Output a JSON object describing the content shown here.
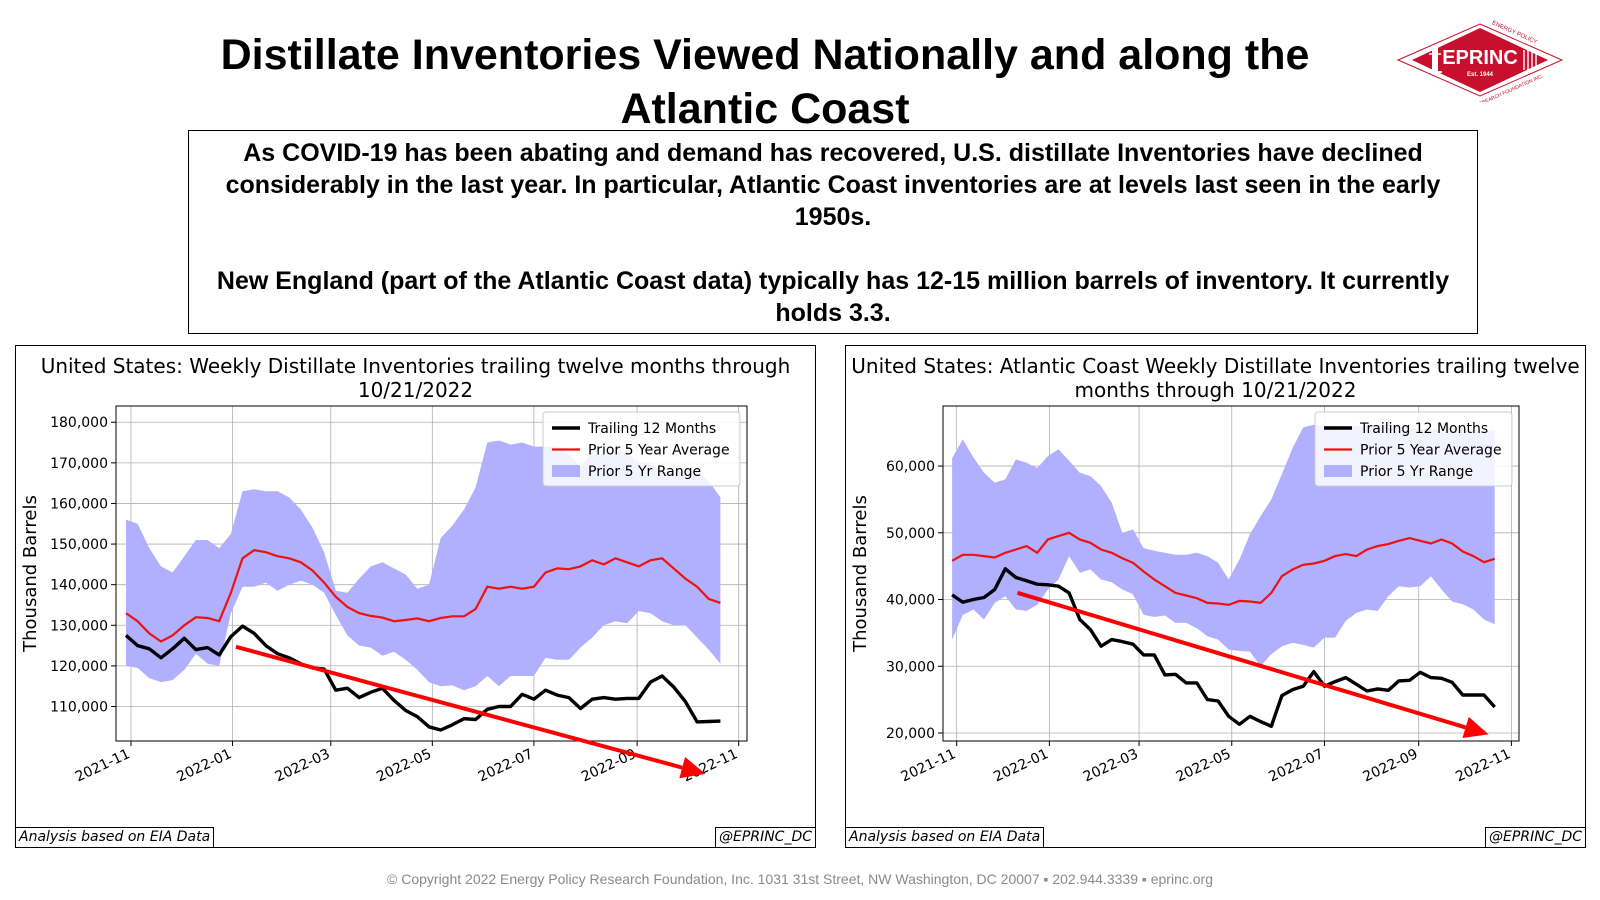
{
  "slide": {
    "title": "Distillate Inventories Viewed Nationally and along the Atlantic Coast",
    "summary_p1": "As COVID-19 has been abating and demand has recovered, U.S. distillate Inventories have declined considerably in the last year. In particular, Atlantic Coast inventories are at levels last seen in the early 1950s.",
    "summary_p2": "New England (part of the Atlantic Coast data) typically has 12-15 million barrels of inventory. It currently holds 3.3.",
    "footer": "© Copyright 2022 Energy Policy Research Foundation, Inc. 1031 31st Street, NW Washington, DC 20007 ▪ 202.944.3339 ▪ eprinc.org"
  },
  "logo": {
    "text": "EPRINC",
    "est": "Est. 1944",
    "ring_top": "ENERGY POLICY",
    "ring_bottom": "RESEARCH FOUNDATION INC.",
    "color": "#c8102e"
  },
  "colors": {
    "trailing": "#000000",
    "average": "#ee1111",
    "range": "#b0b0ff",
    "trend_arrow": "#ff0000"
  },
  "chart_data": [
    {
      "type": "line",
      "title": "United States: Weekly Distillate Inventories trailing twelve months through 10/21/2022",
      "ylabel": "Thousand Barrels",
      "xlabel": "",
      "xlim": [
        "2021-10-23",
        "2022-11-06"
      ],
      "ylim": [
        101500,
        184000
      ],
      "yticks": [
        110000,
        120000,
        130000,
        140000,
        150000,
        160000,
        170000,
        180000
      ],
      "ytick_labels": [
        "110,000",
        "120,000",
        "130,000",
        "140,000",
        "150,000",
        "160,000",
        "170,000",
        "180,000"
      ],
      "xticks": [
        "2021-11-01",
        "2022-01-01",
        "2022-03-01",
        "2022-05-01",
        "2022-07-01",
        "2022-09-01",
        "2022-11-01"
      ],
      "xtick_labels": [
        "2021-11",
        "2022-01",
        "2022-03",
        "2022-05",
        "2022-07",
        "2022-09",
        "2022-11"
      ],
      "grid": true,
      "legend_position": "upper right",
      "legend": [
        "Trailing 12 Months",
        "Prior 5 Year Average",
        "Prior 5 Yr Range"
      ],
      "dates": [
        "2021-10-29",
        "2021-11-05",
        "2021-11-12",
        "2021-11-19",
        "2021-11-26",
        "2021-12-03",
        "2021-12-10",
        "2021-12-17",
        "2021-12-24",
        "2021-12-31",
        "2022-01-07",
        "2022-01-14",
        "2022-01-21",
        "2022-01-28",
        "2022-02-04",
        "2022-02-11",
        "2022-02-18",
        "2022-02-25",
        "2022-03-04",
        "2022-03-11",
        "2022-03-18",
        "2022-03-25",
        "2022-04-01",
        "2022-04-08",
        "2022-04-15",
        "2022-04-22",
        "2022-04-29",
        "2022-05-06",
        "2022-05-13",
        "2022-05-20",
        "2022-05-27",
        "2022-06-03",
        "2022-06-10",
        "2022-06-17",
        "2022-06-24",
        "2022-07-01",
        "2022-07-08",
        "2022-07-15",
        "2022-07-22",
        "2022-07-29",
        "2022-08-05",
        "2022-08-12",
        "2022-08-19",
        "2022-08-26",
        "2022-09-02",
        "2022-09-09",
        "2022-09-16",
        "2022-09-23",
        "2022-09-30",
        "2022-10-07",
        "2022-10-14",
        "2022-10-21"
      ],
      "series": [
        {
          "name": "Trailing 12 Months",
          "values": [
            127500,
            125000,
            124200,
            122000,
            124200,
            126800,
            124000,
            124500,
            122700,
            127200,
            129800,
            128000,
            125000,
            123000,
            122000,
            120500,
            119500,
            119200,
            114000,
            114500,
            112200,
            113500,
            114500,
            111500,
            109000,
            107500,
            105000,
            104200,
            105500,
            107000,
            106800,
            109300,
            110000,
            110000,
            113000,
            111800,
            114000,
            112800,
            112200,
            109500,
            111800,
            112200,
            111800,
            112000,
            112000,
            116000,
            117500,
            114800,
            111200,
            106200,
            106300,
            106400
          ]
        },
        {
          "name": "Prior 5 Year Average",
          "values": [
            133000,
            131000,
            128000,
            126000,
            127500,
            130000,
            132000,
            131800,
            131000,
            138000,
            146500,
            148500,
            148000,
            147000,
            146500,
            145500,
            143500,
            140500,
            137000,
            134500,
            133000,
            132300,
            131900,
            131000,
            131300,
            131700,
            131000,
            131800,
            132200,
            132200,
            134000,
            139500,
            139000,
            139500,
            139000,
            139500,
            143000,
            144000,
            143800,
            144500,
            146000,
            145000,
            146500,
            145500,
            144500,
            146000,
            146500,
            144000,
            141500,
            139500,
            136500,
            135500
          ]
        },
        {
          "name": "Prior 5 Yr Range (high)",
          "values": [
            156000,
            155000,
            149000,
            144500,
            143000,
            147000,
            151000,
            151000,
            149000,
            152500,
            163000,
            163500,
            163000,
            163000,
            161500,
            158500,
            154000,
            148000,
            138500,
            138000,
            141500,
            144500,
            145500,
            144000,
            142500,
            139000,
            140000,
            151500,
            154500,
            158500,
            164000,
            175000,
            175500,
            174500,
            175000,
            174000,
            174000,
            174000,
            172000,
            169000,
            172500,
            172000,
            173000,
            172500,
            170000,
            170000,
            167500,
            168000,
            168000,
            168000,
            165500,
            161500
          ]
        },
        {
          "name": "Prior 5 Yr Range (low)",
          "values": [
            120000,
            119500,
            117000,
            116000,
            116500,
            119000,
            123000,
            120500,
            120000,
            133000,
            139500,
            139500,
            140500,
            138500,
            140000,
            141000,
            140000,
            138000,
            132500,
            127500,
            125000,
            124500,
            122500,
            123500,
            121500,
            119000,
            116000,
            115000,
            115200,
            114000,
            115000,
            117500,
            115000,
            117500,
            117500,
            117500,
            122000,
            121500,
            121500,
            124500,
            127000,
            130000,
            131000,
            130500,
            133500,
            133000,
            131000,
            130000,
            130000,
            127000,
            124000,
            120500
          ]
        }
      ],
      "trend_arrow": {
        "start": [
          "2022-01-03",
          124700
        ],
        "end": [
          "2022-10-12",
          93400
        ]
      },
      "annotations": [
        "Analysis based on EIA Data",
        "@EPRINC_DC"
      ]
    },
    {
      "type": "line",
      "title": "United States: Atlantic Coast Weekly Distillate Inventories trailing twelve months through 10/21/2022",
      "ylabel": "Thousand Barrels",
      "xlabel": "",
      "xlim": [
        "2021-10-23",
        "2022-11-06"
      ],
      "ylim": [
        18800,
        69000
      ],
      "yticks": [
        20000,
        30000,
        40000,
        50000,
        60000
      ],
      "ytick_labels": [
        "20,000",
        "30,000",
        "40,000",
        "50,000",
        "60,000"
      ],
      "xticks": [
        "2021-11-01",
        "2022-01-01",
        "2022-03-01",
        "2022-05-01",
        "2022-07-01",
        "2022-09-01",
        "2022-11-01"
      ],
      "xtick_labels": [
        "2021-11",
        "2022-01",
        "2022-03",
        "2022-05",
        "2022-07",
        "2022-09",
        "2022-11"
      ],
      "grid": true,
      "legend_position": "upper right",
      "legend": [
        "Trailing 12 Months",
        "Prior 5 Year Average",
        "Prior 5 Yr Range"
      ],
      "dates": [
        "2021-10-29",
        "2021-11-05",
        "2021-11-12",
        "2021-11-19",
        "2021-11-26",
        "2021-12-03",
        "2021-12-10",
        "2021-12-17",
        "2021-12-24",
        "2021-12-31",
        "2022-01-07",
        "2022-01-14",
        "2022-01-21",
        "2022-01-28",
        "2022-02-04",
        "2022-02-11",
        "2022-02-18",
        "2022-02-25",
        "2022-03-04",
        "2022-03-11",
        "2022-03-18",
        "2022-03-25",
        "2022-04-01",
        "2022-04-08",
        "2022-04-15",
        "2022-04-22",
        "2022-04-29",
        "2022-05-06",
        "2022-05-13",
        "2022-05-20",
        "2022-05-27",
        "2022-06-03",
        "2022-06-10",
        "2022-06-17",
        "2022-06-24",
        "2022-07-01",
        "2022-07-08",
        "2022-07-15",
        "2022-07-22",
        "2022-07-29",
        "2022-08-05",
        "2022-08-12",
        "2022-08-19",
        "2022-08-26",
        "2022-09-02",
        "2022-09-09",
        "2022-09-16",
        "2022-09-23",
        "2022-09-30",
        "2022-10-07",
        "2022-10-14",
        "2022-10-21"
      ],
      "series": [
        {
          "name": "Trailing 12 Months",
          "values": [
            40700,
            39600,
            40000,
            40300,
            41500,
            44600,
            43300,
            42800,
            42300,
            42200,
            42000,
            41000,
            37000,
            35500,
            33000,
            34000,
            33700,
            33300,
            31700,
            31700,
            28700,
            28800,
            27500,
            27500,
            25000,
            24800,
            22500,
            21300,
            22500,
            21700,
            21000,
            25600,
            26500,
            27000,
            29200,
            27000,
            27700,
            28300,
            27300,
            26300,
            26600,
            26400,
            27800,
            27900,
            29100,
            28300,
            28200,
            27600,
            25700,
            25700,
            25700,
            23900
          ]
        },
        {
          "name": "Prior 5 Year Average",
          "values": [
            45800,
            46700,
            46700,
            46500,
            46300,
            47000,
            47500,
            48000,
            47000,
            49000,
            49500,
            50000,
            49000,
            48500,
            47500,
            47000,
            46200,
            45500,
            44200,
            43000,
            42000,
            41000,
            40600,
            40200,
            39500,
            39400,
            39200,
            39800,
            39700,
            39500,
            41000,
            43500,
            44500,
            45200,
            45400,
            45800,
            46500,
            46800,
            46500,
            47500,
            48000,
            48300,
            48800,
            49200,
            48800,
            48400,
            49000,
            48400,
            47200,
            46500,
            45600,
            46100
          ]
        },
        {
          "name": "Prior 5 Yr Range (high)",
          "values": [
            61200,
            64000,
            61300,
            59000,
            57500,
            58000,
            61000,
            60500,
            59700,
            61500,
            62500,
            60800,
            59000,
            58500,
            57000,
            54500,
            50000,
            50500,
            47700,
            47300,
            47000,
            46700,
            46700,
            47000,
            46500,
            45500,
            43000,
            46000,
            49800,
            52500,
            55000,
            58800,
            62700,
            65800,
            66200,
            66000,
            66100,
            66000,
            66000,
            66000,
            66100,
            66500,
            66000,
            65700,
            65500,
            65600,
            65300,
            65800,
            65700,
            65300,
            65300,
            65400
          ]
        },
        {
          "name": "Prior 5 Yr Range (low)",
          "values": [
            34000,
            37700,
            38500,
            37000,
            39500,
            40500,
            38500,
            38300,
            39200,
            41500,
            43000,
            46500,
            44000,
            44500,
            43000,
            42600,
            41500,
            40800,
            37700,
            37400,
            37600,
            36500,
            36500,
            35700,
            34500,
            34000,
            32500,
            32300,
            32200,
            30000,
            31800,
            33000,
            33500,
            33200,
            32800,
            34300,
            34300,
            36800,
            38000,
            38500,
            38300,
            40500,
            42000,
            41800,
            42000,
            43500,
            41500,
            39700,
            39300,
            38500,
            37000,
            36300
          ]
        }
      ],
      "trend_arrow": {
        "start": [
          "2021-12-11",
          41000
        ],
        "end": [
          "2022-10-17",
          19800
        ]
      },
      "annotations": [
        "Analysis based on EIA Data",
        "@EPRINC_DC"
      ]
    }
  ]
}
